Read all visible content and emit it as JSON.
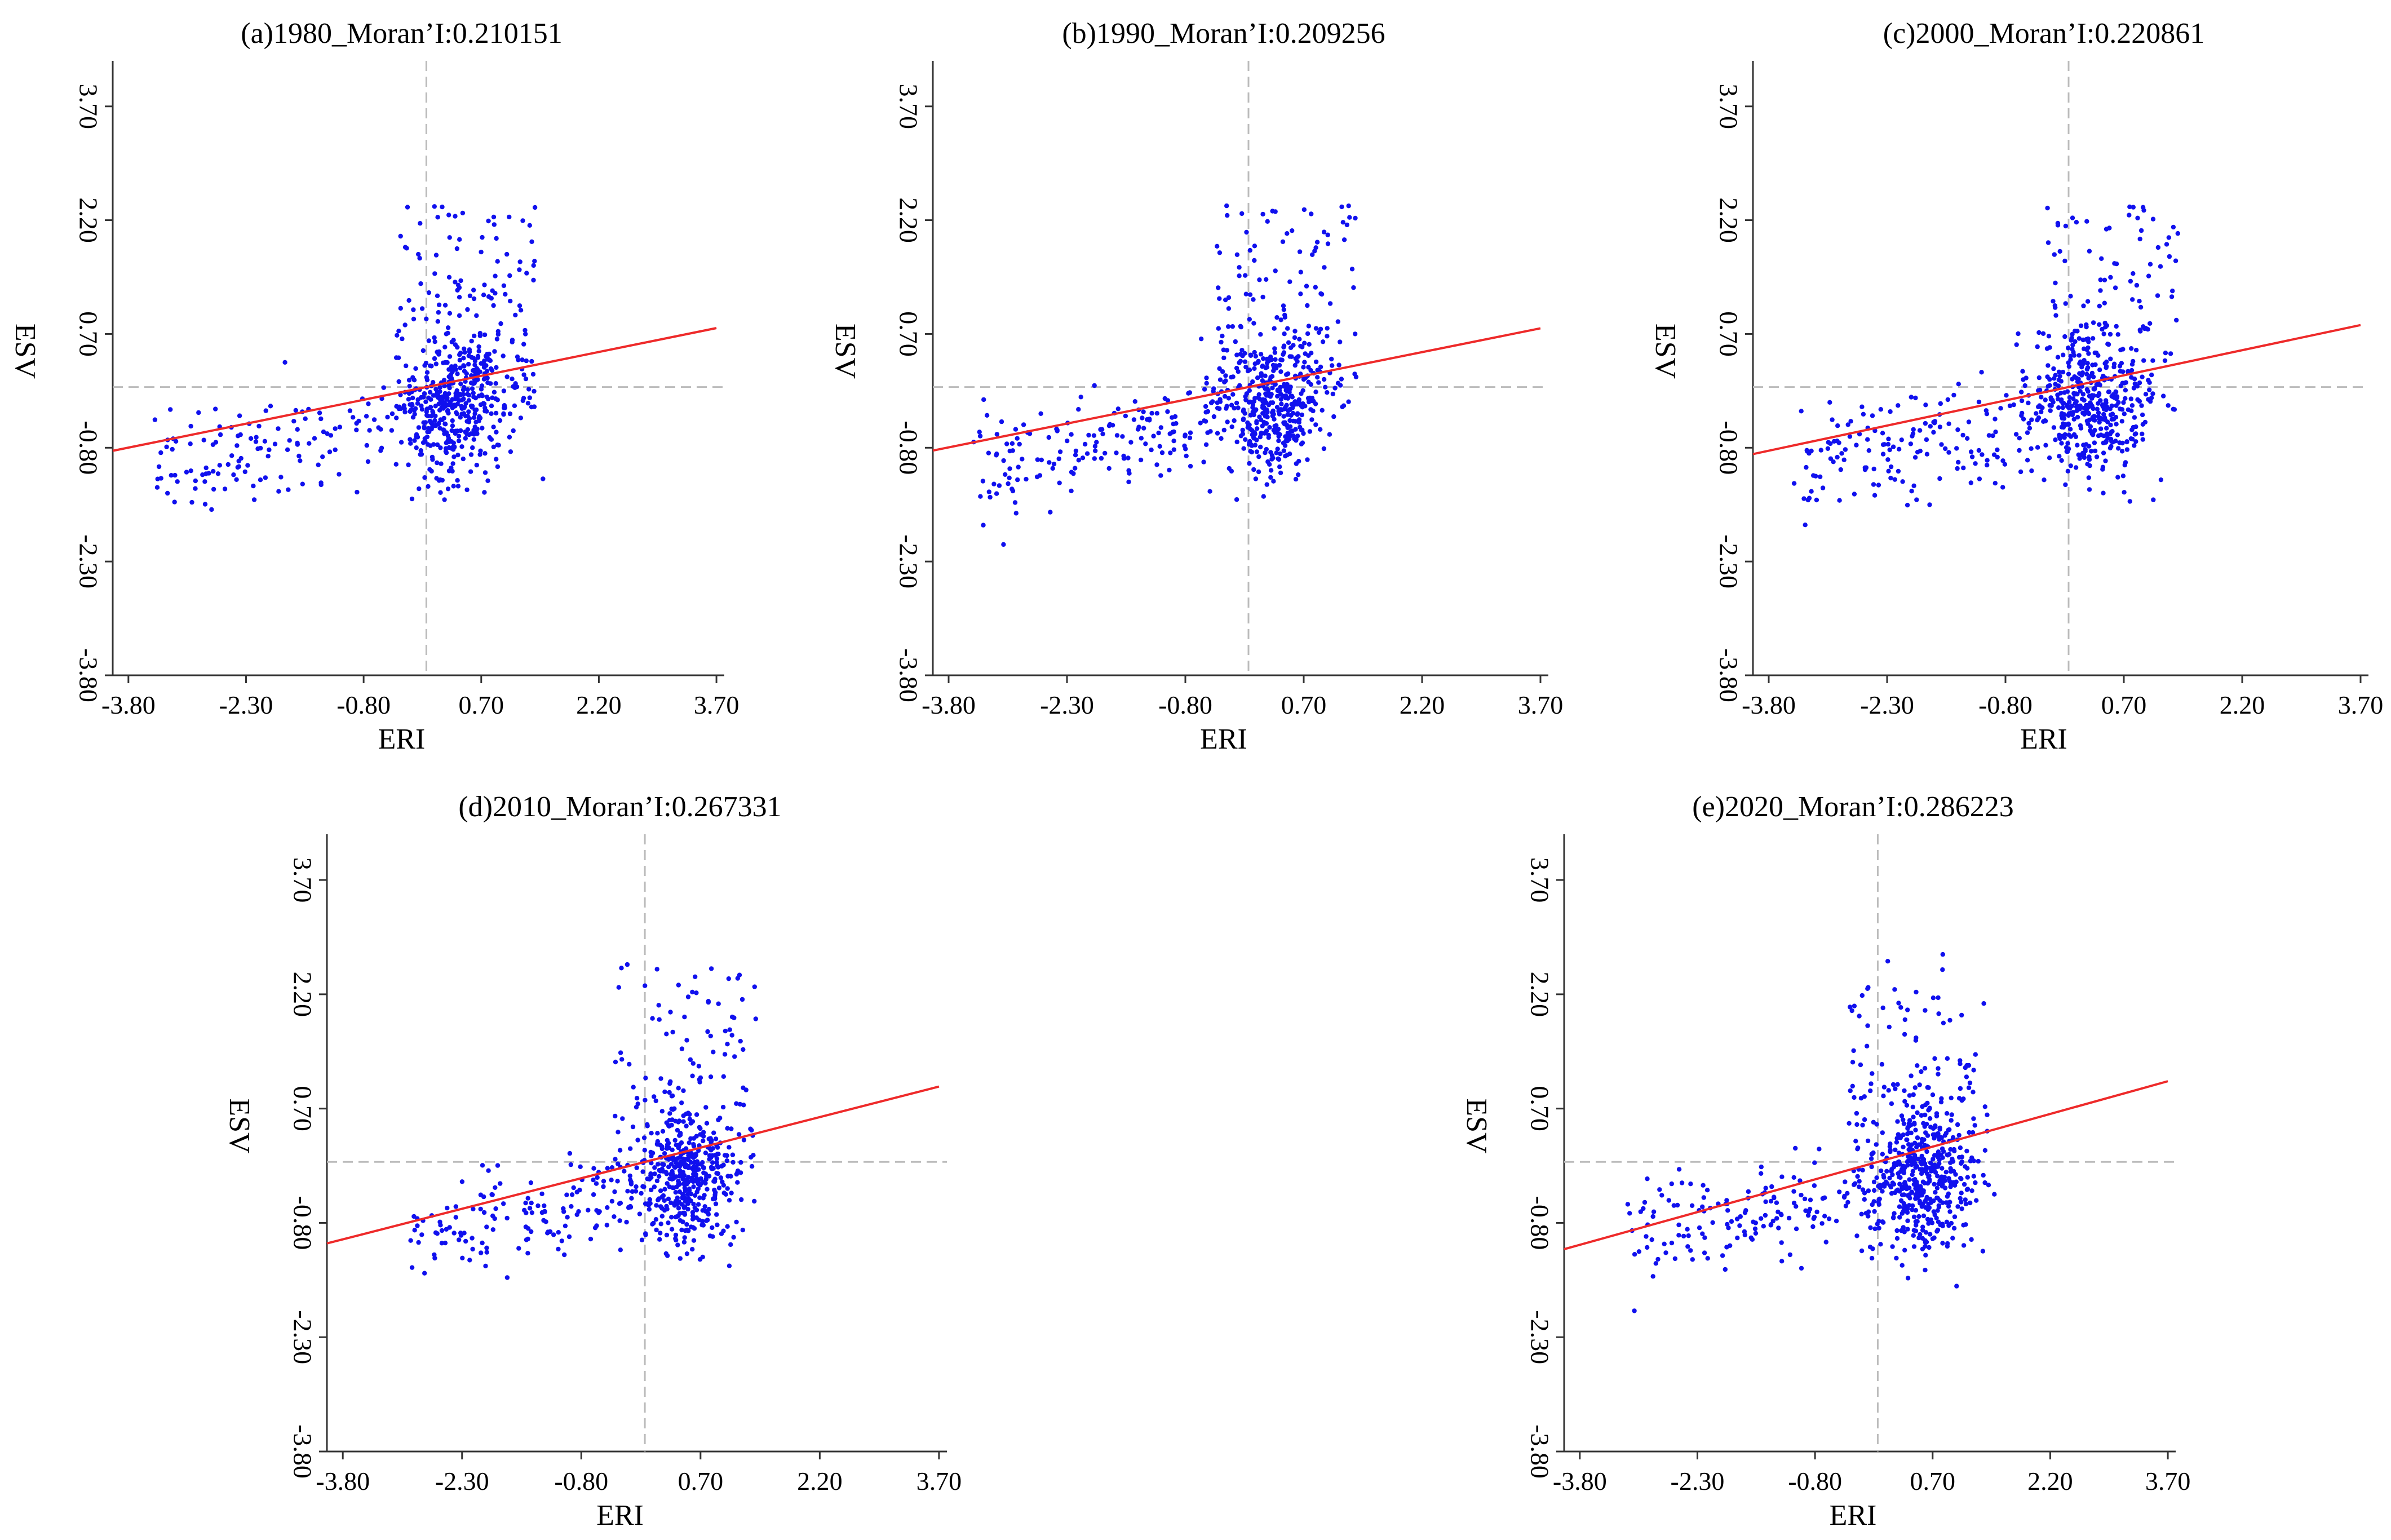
{
  "colors": {
    "points": "#1010ee",
    "regression": "#ee2a2a",
    "mean_lines": "#bbbbbb",
    "axes": "#333333"
  },
  "chart_data": [
    {
      "type": "scatter",
      "title": "(a)1980_Moran’I:0.210151",
      "xlabel": "ERI",
      "ylabel": "ESV",
      "xlim": [
        -4.0,
        3.8
      ],
      "ylim": [
        -3.8,
        4.3
      ],
      "xticks": [
        "-3.80",
        "-2.30",
        "-0.80",
        "0.70",
        "2.20",
        "3.70"
      ],
      "yticks": [
        "-3.80",
        "-2.30",
        "-0.80",
        "0.70",
        "2.20",
        "3.70"
      ],
      "moran_i": 0.210151,
      "regression": {
        "slope": 0.210151,
        "intercept": 0
      },
      "mean_lines": {
        "x": 0,
        "y": 0
      },
      "point_cloud": {
        "count": 700,
        "seed": 11,
        "core_x": 0.35,
        "core_y": -0.35,
        "spread_x": 0.32,
        "spread_y": 0.45,
        "upper_extent": 2.4,
        "left_extent": -3.5
      }
    },
    {
      "type": "scatter",
      "title": "(b)1990_Moran’I:0.209256",
      "xlabel": "ERI",
      "ylabel": "ESV",
      "xlim": [
        -4.0,
        3.8
      ],
      "ylim": [
        -3.8,
        4.3
      ],
      "xticks": [
        "-3.80",
        "-2.30",
        "-0.80",
        "0.70",
        "2.20",
        "3.70"
      ],
      "yticks": [
        "-3.80",
        "-2.30",
        "-0.80",
        "0.70",
        "2.20",
        "3.70"
      ],
      "moran_i": 0.209256,
      "regression": {
        "slope": 0.209256,
        "intercept": 0
      },
      "mean_lines": {
        "x": 0,
        "y": 0
      },
      "point_cloud": {
        "count": 700,
        "seed": 23,
        "core_x": 0.35,
        "core_y": -0.3,
        "spread_x": 0.32,
        "spread_y": 0.45,
        "upper_extent": 2.4,
        "left_extent": -3.5
      }
    },
    {
      "type": "scatter",
      "title": "(c)2000_Moran’I:0.220861",
      "xlabel": "ERI",
      "ylabel": "ESV",
      "xlim": [
        -4.0,
        3.8
      ],
      "ylim": [
        -3.8,
        4.3
      ],
      "xticks": [
        "-3.80",
        "-2.30",
        "-0.80",
        "0.70",
        "2.20",
        "3.70"
      ],
      "yticks": [
        "-3.80",
        "-2.30",
        "-0.80",
        "0.70",
        "2.20",
        "3.70"
      ],
      "moran_i": 0.220861,
      "regression": {
        "slope": 0.220861,
        "intercept": 0
      },
      "mean_lines": {
        "x": 0,
        "y": 0
      },
      "point_cloud": {
        "count": 700,
        "seed": 37,
        "core_x": 0.3,
        "core_y": -0.3,
        "spread_x": 0.34,
        "spread_y": 0.45,
        "upper_extent": 2.4,
        "left_extent": -3.5
      }
    },
    {
      "type": "scatter",
      "title": "(d)2010_Moran’I:0.267331",
      "xlabel": "ERI",
      "ylabel": "ESV",
      "xlim": [
        -4.0,
        3.8
      ],
      "ylim": [
        -3.8,
        4.3
      ],
      "xticks": [
        "-3.80",
        "-2.30",
        "-0.80",
        "0.70",
        "2.20",
        "3.70"
      ],
      "yticks": [
        "-3.80",
        "-2.30",
        "-0.80",
        "0.70",
        "2.20",
        "3.70"
      ],
      "moran_i": 0.267331,
      "regression": {
        "slope": 0.267331,
        "intercept": 0
      },
      "mean_lines": {
        "x": 0,
        "y": 0
      },
      "point_cloud": {
        "count": 700,
        "seed": 51,
        "core_x": 0.55,
        "core_y": -0.3,
        "spread_x": 0.28,
        "spread_y": 0.42,
        "upper_extent": 2.6,
        "left_extent": -3.0
      }
    },
    {
      "type": "scatter",
      "title": "(e)2020_Moran’I:0.286223",
      "xlabel": "ERI",
      "ylabel": "ESV",
      "xlim": [
        -4.0,
        3.8
      ],
      "ylim": [
        -3.8,
        4.3
      ],
      "xticks": [
        "-3.80",
        "-2.30",
        "-0.80",
        "0.70",
        "2.20",
        "3.70"
      ],
      "yticks": [
        "-3.80",
        "-2.30",
        "-0.80",
        "0.70",
        "2.20",
        "3.70"
      ],
      "moran_i": 0.286223,
      "regression": {
        "slope": 0.286223,
        "intercept": 0
      },
      "mean_lines": {
        "x": 0,
        "y": 0
      },
      "point_cloud": {
        "count": 750,
        "seed": 67,
        "core_x": 0.6,
        "core_y": -0.3,
        "spread_x": 0.3,
        "spread_y": 0.45,
        "upper_extent": 2.8,
        "left_extent": -3.2
      }
    }
  ]
}
